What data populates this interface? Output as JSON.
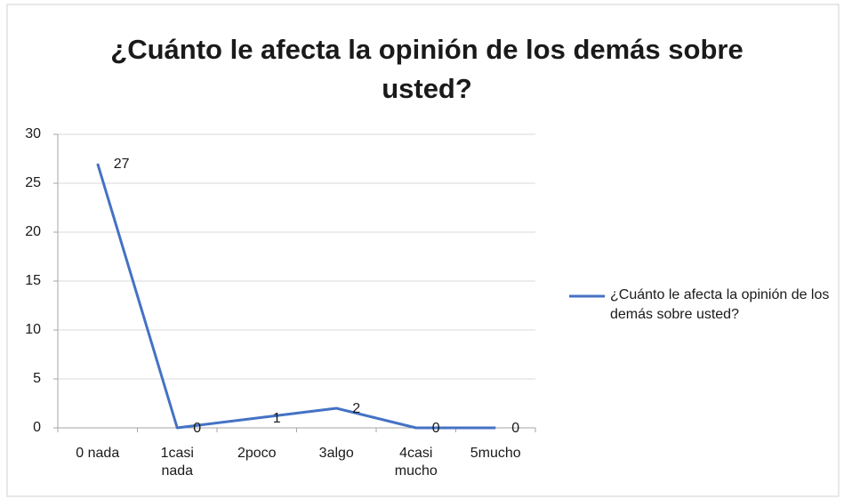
{
  "chart_data": {
    "type": "line",
    "title": "¿Cuánto le afecta la opinión de los demás sobre usted?",
    "categories": [
      "0 nada",
      "1casi nada",
      "2poco",
      "3algo",
      "4casi mucho",
      "5mucho"
    ],
    "series": [
      {
        "name": "¿Cuánto le afecta la opinión de los demás sobre usted?",
        "color": "#4472c4",
        "values": [
          27,
          0,
          1,
          2,
          0,
          0
        ]
      }
    ],
    "ylim": [
      0,
      30
    ],
    "yticks": [
      0,
      5,
      10,
      15,
      20,
      25,
      30
    ],
    "grid": true,
    "legend": "right",
    "data_labels": true
  }
}
